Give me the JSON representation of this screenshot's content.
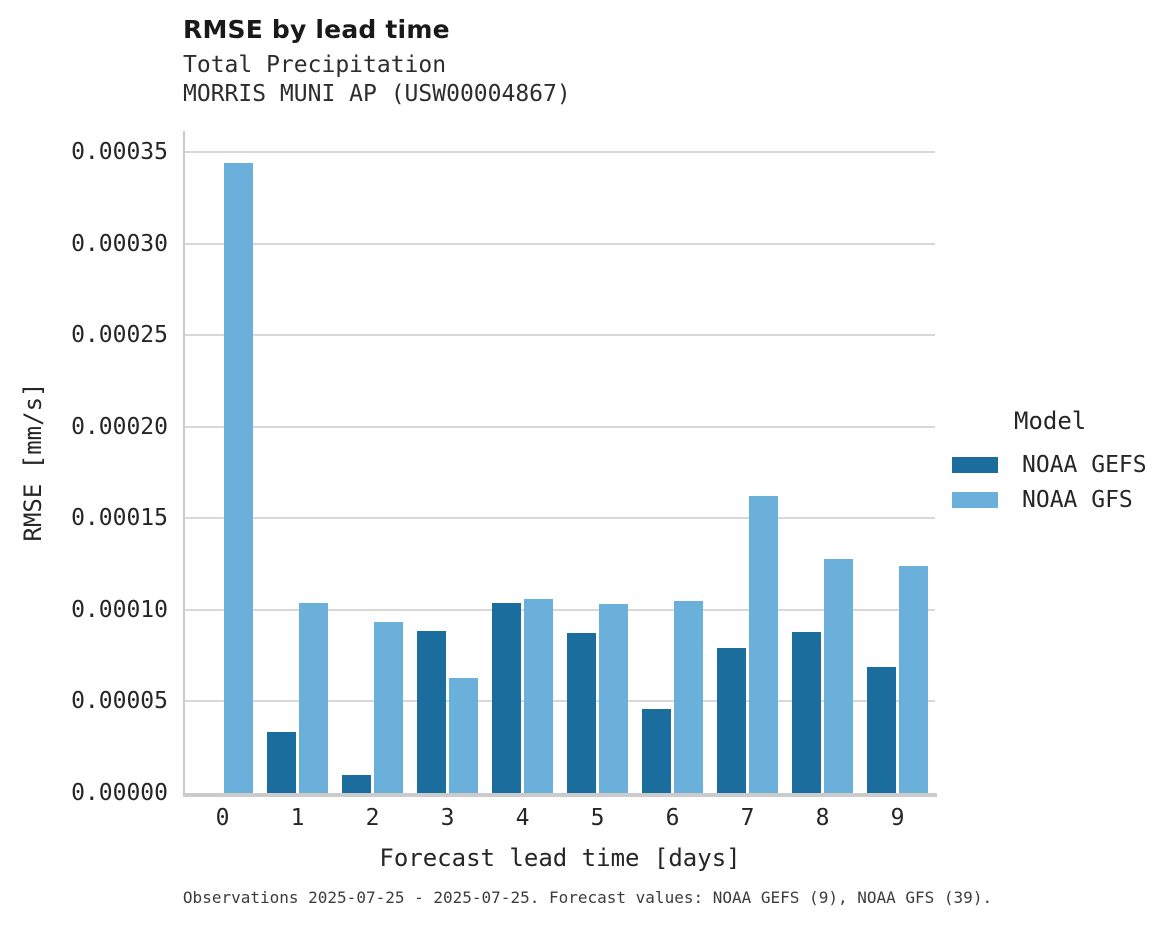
{
  "header": {
    "title": "RMSE by lead time",
    "subtitle1": "Total Precipitation",
    "subtitle2": "MORRIS MUNI AP (USW00004867)"
  },
  "chart_data": {
    "type": "bar",
    "title": "RMSE by lead time",
    "subtitle": [
      "Total Precipitation",
      "MORRIS MUNI AP (USW00004867)"
    ],
    "categories": [
      "0",
      "1",
      "2",
      "3",
      "4",
      "5",
      "6",
      "7",
      "8",
      "9"
    ],
    "series": [
      {
        "name": "NOAA GEFS",
        "color": "#1a6d9c",
        "values": [
          null,
          3.33e-05,
          9.8e-06,
          8.85e-05,
          0.000104,
          8.74e-05,
          4.6e-05,
          7.92e-05,
          8.79e-05,
          6.88e-05
        ]
      },
      {
        "name": "NOAA GFS",
        "color": "#6bb0da",
        "values": [
          0.000344,
          0.000104,
          9.34e-05,
          6.28e-05,
          0.000106,
          0.000103,
          0.000105,
          0.000162,
          0.000128,
          0.000124
        ]
      }
    ],
    "xlabel": "Forecast lead time [days]",
    "ylabel": "RMSE [mm/s]",
    "ylim": [
      0,
      0.0003615
    ],
    "yticks": [
      0.0,
      5e-05,
      0.0001,
      0.00015,
      0.0002,
      0.00025,
      0.0003,
      0.00035
    ],
    "ytick_format_decimals": 5,
    "grid": "horizontal",
    "legend_position": "right"
  },
  "legend": {
    "title": "Model",
    "items": [
      {
        "label": "NOAA GEFS",
        "color": "#1a6d9c"
      },
      {
        "label": "NOAA GFS",
        "color": "#6bb0da"
      }
    ]
  },
  "footer": {
    "note": "Observations 2025-07-25 - 2025-07-25. Forecast values: NOAA GEFS (9), NOAA GFS (39)."
  },
  "colors": {
    "background": "#ffffff",
    "gridline": "#d8d8d8",
    "axis_spine": "#cbcbcb",
    "text": "#262626",
    "gefs_bar": "#1a6d9c",
    "gfs_bar": "#6bb0da"
  }
}
